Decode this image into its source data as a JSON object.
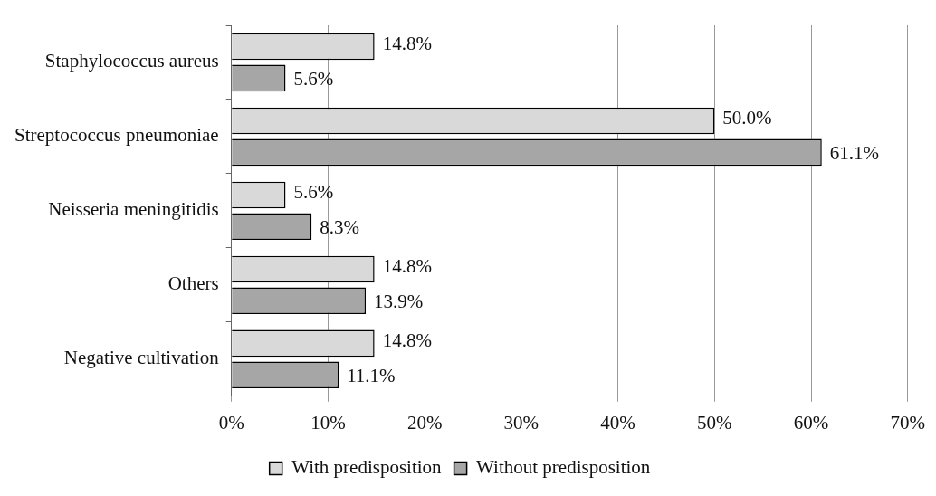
{
  "chart_data": {
    "type": "bar",
    "orientation": "horizontal",
    "categories": [
      "Staphylococcus aureus",
      "Streptococcus pneumoniae",
      "Neisseria meningitidis",
      "Others",
      "Negative cultivation"
    ],
    "series": [
      {
        "name": "With predisposition",
        "color": "#d9d9d9",
        "values": [
          14.8,
          50.0,
          5.6,
          14.8,
          14.8
        ],
        "value_labels": [
          "14.8%",
          "50.0%",
          "5.6%",
          "14.8%",
          "14.8%"
        ]
      },
      {
        "name": "Without predisposition",
        "color": "#a6a6a6",
        "values": [
          5.6,
          61.1,
          8.3,
          13.9,
          11.1
        ],
        "value_labels": [
          "5.6%",
          "61.1%",
          "8.3%",
          "13.9%",
          "11.1%"
        ]
      }
    ],
    "xlim": [
      0,
      70
    ],
    "xticks": [
      {
        "value": 0,
        "label": "0%"
      },
      {
        "value": 10,
        "label": "10%"
      },
      {
        "value": 20,
        "label": "20%"
      },
      {
        "value": 30,
        "label": "30%"
      },
      {
        "value": 40,
        "label": "40%"
      },
      {
        "value": 50,
        "label": "50%"
      },
      {
        "value": 60,
        "label": "60%"
      },
      {
        "value": 70,
        "label": "70%"
      }
    ],
    "grid": "x",
    "legend": "bottom"
  }
}
